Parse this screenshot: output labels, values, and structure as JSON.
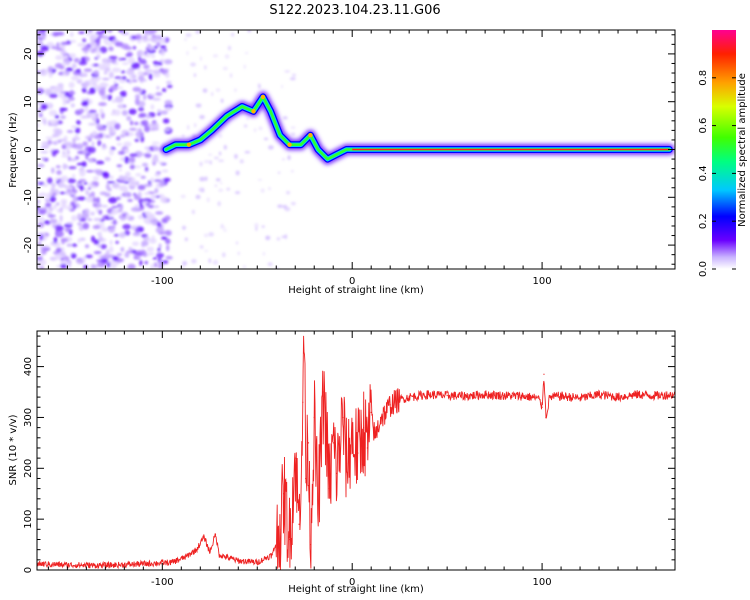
{
  "title": "S122.2023.104.23.11.G06",
  "chart_data": [
    {
      "type": "heatmap",
      "xlabel": "Height of straight line (km)",
      "ylabel": "Frequency (Hz)",
      "xlim": [
        -166,
        170
      ],
      "ylim": [
        -25,
        25
      ],
      "xticks": [
        -100,
        0,
        100
      ],
      "xtick_labels": [
        "-100",
        "0",
        "100"
      ],
      "yticks": [
        -20,
        -10,
        0,
        10,
        20
      ],
      "ytick_labels": [
        "-20",
        "-10",
        "0",
        "10",
        "20"
      ],
      "colorbar": {
        "label": "Normalized spectral amplitude",
        "range": [
          0,
          1
        ],
        "ticks": [
          0.0,
          0.2,
          0.4,
          0.6,
          0.8
        ],
        "tick_labels": [
          "0.0",
          "0.2",
          "0.4",
          "0.6",
          "0.8"
        ]
      },
      "ridge": [
        {
          "x": -98,
          "y": 0
        },
        {
          "x": -93,
          "y": 1
        },
        {
          "x": -86,
          "y": 1
        },
        {
          "x": -80,
          "y": 2
        },
        {
          "x": -74,
          "y": 4
        },
        {
          "x": -66,
          "y": 7
        },
        {
          "x": -58,
          "y": 9
        },
        {
          "x": -52,
          "y": 8
        },
        {
          "x": -47,
          "y": 11
        },
        {
          "x": -43,
          "y": 8
        },
        {
          "x": -38,
          "y": 3
        },
        {
          "x": -33,
          "y": 1
        },
        {
          "x": -27,
          "y": 1
        },
        {
          "x": -22,
          "y": 3
        },
        {
          "x": -18,
          "y": 0
        },
        {
          "x": -13,
          "y": -2
        },
        {
          "x": -8,
          "y": -1
        },
        {
          "x": -3,
          "y": 0
        },
        {
          "x": 0,
          "y": 0
        },
        {
          "x": 167,
          "y": 0
        }
      ],
      "grid": false
    },
    {
      "type": "line",
      "xlabel": "Height of straight line (km)",
      "ylabel": "SNR (10 * v/v)",
      "xlim": [
        -166,
        170
      ],
      "ylim": [
        0,
        470
      ],
      "xticks": [
        -100,
        0,
        100
      ],
      "xtick_labels": [
        "-100",
        "0",
        "100"
      ],
      "yticks": [
        0,
        100,
        200,
        300,
        400
      ],
      "ytick_labels": [
        "0",
        "100",
        "200",
        "300",
        "400"
      ],
      "line_color": "#ee2222",
      "grid": false,
      "series": [
        {
          "x": [
            -166,
            -150,
            -130,
            -110,
            -95,
            -88,
            -82,
            -78,
            -75,
            -72,
            -70,
            -66,
            -60,
            -50,
            -42,
            -38,
            -36,
            -33,
            -30,
            -28,
            -26,
            -25,
            -24.5,
            -23,
            -22,
            -20,
            -18,
            -15,
            -12,
            -10,
            -8,
            -5,
            -3,
            0,
            3,
            6,
            8,
            10,
            12,
            15,
            18,
            20,
            25,
            30,
            40,
            50,
            60,
            70,
            80,
            90,
            98,
            100,
            101,
            102,
            104,
            110,
            120,
            130,
            140,
            150,
            160,
            170
          ],
          "y": [
            12,
            10,
            9,
            12,
            15,
            25,
            40,
            65,
            35,
            70,
            30,
            25,
            18,
            15,
            30,
            80,
            150,
            60,
            220,
            90,
            330,
            470,
            180,
            250,
            50,
            300,
            120,
            350,
            160,
            250,
            190,
            300,
            210,
            260,
            230,
            280,
            240,
            310,
            260,
            300,
            310,
            325,
            335,
            340,
            345,
            343,
            342,
            345,
            343,
            342,
            338,
            320,
            385,
            300,
            340,
            342,
            338,
            345,
            340,
            345,
            343,
            345
          ]
        }
      ]
    }
  ]
}
